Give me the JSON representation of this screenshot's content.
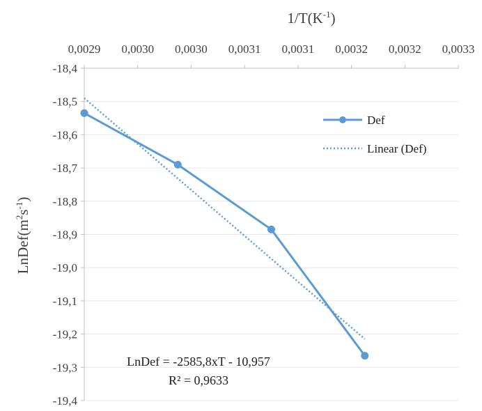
{
  "chart_data": {
    "type": "line",
    "x_axis_title_text": "1/T(K",
    "x_axis_title_sup": "-1",
    "x_axis_title_end": ")",
    "y_axis_title_text": "LnDef(m",
    "y_axis_title_sup1": "2",
    "y_axis_title_mid": "s",
    "y_axis_title_sup2": "-1",
    "y_axis_title_end": ")",
    "x_tick_labels": [
      "0,0029",
      "0,0030",
      "0,0030",
      "0,0031",
      "0,0031",
      "0,0032",
      "0,0032",
      "0,0033"
    ],
    "xlim": [
      0.0029,
      0.0033
    ],
    "ylim": [
      -19.4,
      -18.4
    ],
    "y_ticks": [
      -18.4,
      -18.5,
      -18.6,
      -18.7,
      -18.8,
      -18.9,
      -19.0,
      -19.1,
      -19.2,
      -19.3,
      -19.4
    ],
    "y_tick_labels": [
      "-18,4",
      "-18,5",
      "-18,6",
      "-18,7",
      "-18,8",
      "-18,9",
      "-19,0",
      "-19,1",
      "-19,2",
      "-19,3",
      "-19,4"
    ],
    "series": [
      {
        "name": "Def",
        "x": [
          0.0029,
          0.003,
          0.0031,
          0.0032
        ],
        "y": [
          -18.535,
          -18.69,
          -18.885,
          -19.265
        ],
        "color": "#5b9bd5"
      }
    ],
    "trendline": {
      "name": "Linear (Def)",
      "x": [
        0.0029,
        0.0032
      ],
      "y": [
        -18.49,
        -19.215
      ],
      "color": "#5b9bd5",
      "style": "dotted"
    },
    "equation": "LnDef = -2585,8xT - 10,957",
    "r_squared": "R² = 0,9633",
    "legend_position": "right"
  }
}
